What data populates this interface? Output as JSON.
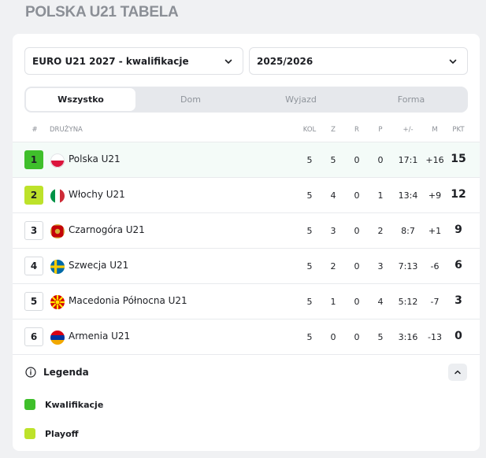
{
  "page_title": "POLSKA U21 TABELA",
  "selects": {
    "competition": "EURO U21 2027 - kwalifikacje",
    "season": "2025/2026"
  },
  "tabs": [
    {
      "label": "Wszystko",
      "active": true
    },
    {
      "label": "Dom",
      "active": false
    },
    {
      "label": "Wyjazd",
      "active": false
    },
    {
      "label": "Forma",
      "active": false
    }
  ],
  "headers": {
    "pos": "#",
    "team": "DRUŻYNA",
    "kol": "KOL",
    "z": "Z",
    "r": "R",
    "p": "P",
    "gd": "+/-",
    "m": "M",
    "pkt": "PKT"
  },
  "rows": [
    {
      "pos": "1",
      "team": "Polska U21",
      "flag": "poland-flag-icon",
      "kol": "5",
      "z": "5",
      "r": "0",
      "p": "0",
      "gd": "17:1",
      "m": "+16",
      "pkt": "15",
      "status": "q"
    },
    {
      "pos": "2",
      "team": "Włochy U21",
      "flag": "italy-flag-icon",
      "kol": "5",
      "z": "4",
      "r": "0",
      "p": "1",
      "gd": "13:4",
      "m": "+9",
      "pkt": "12",
      "status": "p"
    },
    {
      "pos": "3",
      "team": "Czarnogóra U21",
      "flag": "montenegro-flag-icon",
      "kol": "5",
      "z": "3",
      "r": "0",
      "p": "2",
      "gd": "8:7",
      "m": "+1",
      "pkt": "9",
      "status": ""
    },
    {
      "pos": "4",
      "team": "Szwecja U21",
      "flag": "sweden-flag-icon",
      "kol": "5",
      "z": "2",
      "r": "0",
      "p": "3",
      "gd": "7:13",
      "m": "-6",
      "pkt": "6",
      "status": ""
    },
    {
      "pos": "5",
      "team": "Macedonia Północna U21",
      "flag": "north-macedonia-flag-icon",
      "kol": "5",
      "z": "1",
      "r": "0",
      "p": "4",
      "gd": "5:12",
      "m": "-7",
      "pkt": "3",
      "status": ""
    },
    {
      "pos": "6",
      "team": "Armenia U21",
      "flag": "armenia-flag-icon",
      "kol": "5",
      "z": "0",
      "r": "0",
      "p": "5",
      "gd": "3:16",
      "m": "-13",
      "pkt": "0",
      "status": ""
    }
  ],
  "legend": {
    "title": "Legenda",
    "items": [
      {
        "label": "Kwalifikacje",
        "color": "#3fbf2b"
      },
      {
        "label": "Playoff",
        "color": "#bde22a"
      }
    ]
  },
  "colors": {
    "qualification": "#3fbf2b",
    "playoff": "#bde22a"
  }
}
